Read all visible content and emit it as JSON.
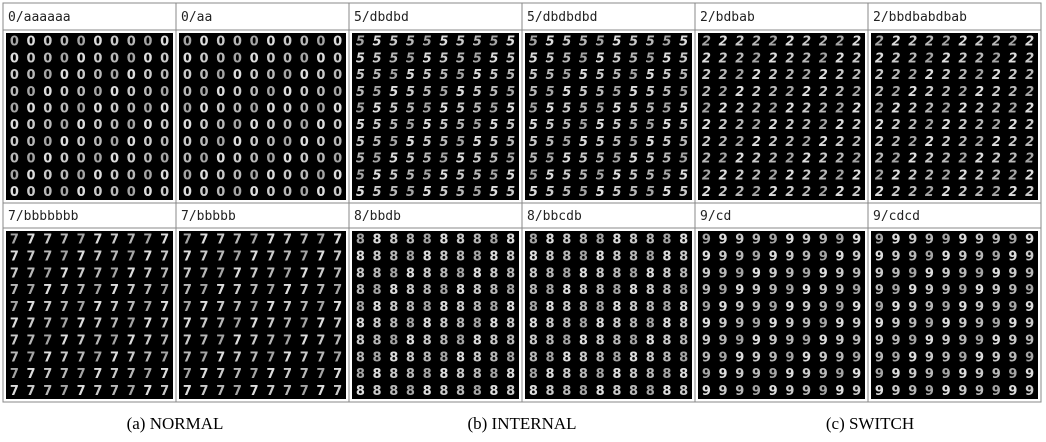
{
  "panels": [
    {
      "label": "0/aaaaaa",
      "digit": "0"
    },
    {
      "label": "0/aa",
      "digit": "0"
    },
    {
      "label": "5/dbdbd",
      "digit": "5"
    },
    {
      "label": "5/dbdbdbd",
      "digit": "5"
    },
    {
      "label": "2/bdbab",
      "digit": "2"
    },
    {
      "label": "2/bbdbabdbab",
      "digit": "2"
    },
    {
      "label": "7/bbbbbbb",
      "digit": "7"
    },
    {
      "label": "7/bbbbb",
      "digit": "7"
    },
    {
      "label": "8/bbdb",
      "digit": "8"
    },
    {
      "label": "8/bbcdb",
      "digit": "8"
    },
    {
      "label": "9/cd",
      "digit": "9"
    },
    {
      "label": "9/cdcd",
      "digit": "9"
    }
  ],
  "captions": [
    "(a) NORMAL",
    "(b) INTERNAL",
    "(c) SWITCH"
  ]
}
